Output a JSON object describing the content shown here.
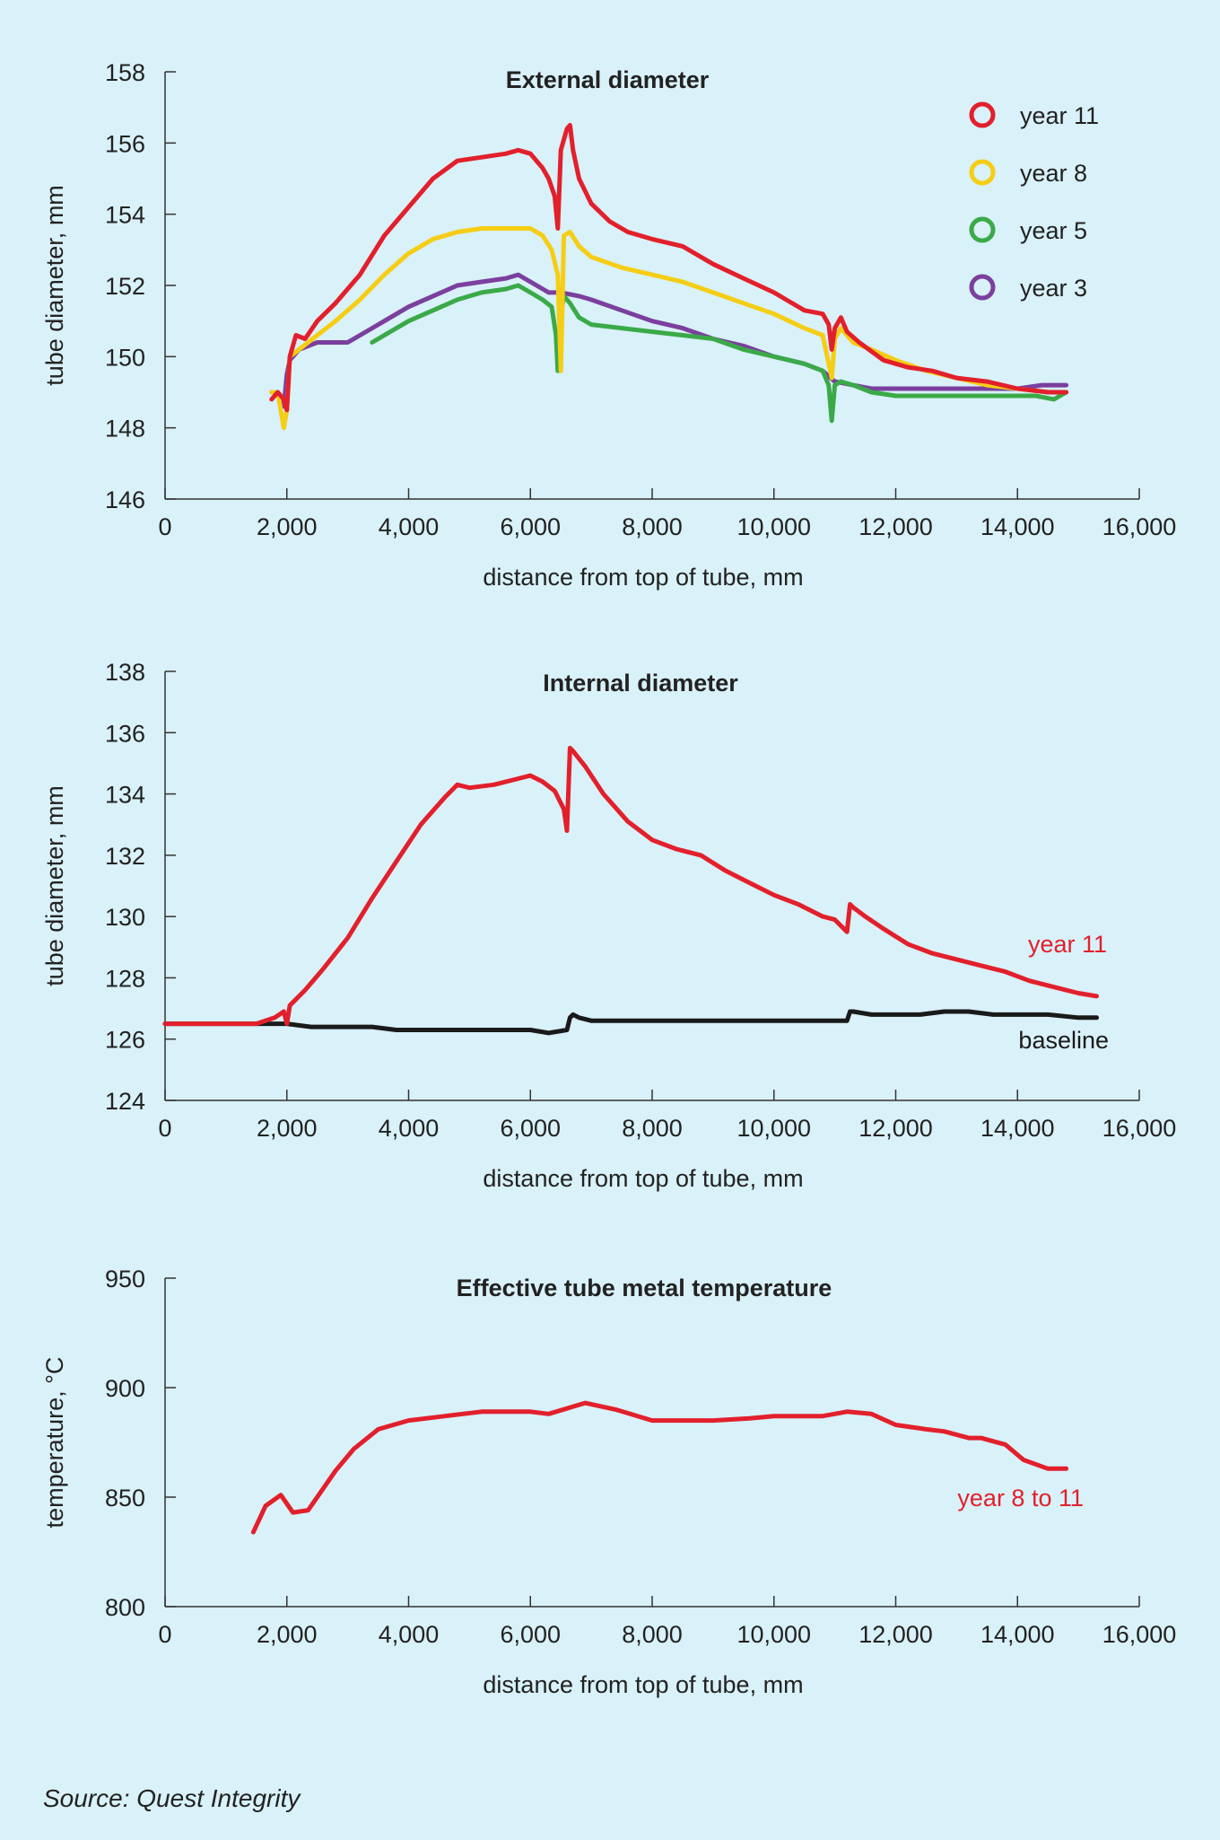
{
  "chart_data": [
    {
      "type": "line",
      "title": "External diameter",
      "xlabel": "distance from top of tube, mm",
      "ylabel": "tube diameter, mm",
      "xlim": [
        0,
        16000
      ],
      "ylim": [
        146,
        158
      ],
      "xticks": [
        0,
        2000,
        4000,
        6000,
        8000,
        10000,
        12000,
        14000,
        16000
      ],
      "xtick_labels": [
        "0",
        "2,000",
        "4,000",
        "6,000",
        "8,000",
        "10,000",
        "12,000",
        "14,000",
        "16,000"
      ],
      "yticks": [
        146,
        148,
        150,
        152,
        154,
        156,
        158
      ],
      "ytick_labels": [
        "146",
        "148",
        "150",
        "152",
        "154",
        "156",
        "158"
      ],
      "legend": "top-right",
      "series": [
        {
          "name": "year 11",
          "color": "#e2202c",
          "x": [
            1750,
            1850,
            1950,
            2000,
            2050,
            2150,
            2300,
            2500,
            2800,
            3200,
            3600,
            4000,
            4400,
            4800,
            5200,
            5600,
            5800,
            6000,
            6200,
            6300,
            6400,
            6450,
            6500,
            6600,
            6650,
            6700,
            6800,
            7000,
            7300,
            7600,
            8000,
            8500,
            9000,
            9500,
            10000,
            10500,
            10800,
            10900,
            10950,
            11000,
            11100,
            11200,
            11400,
            11800,
            12200,
            12600,
            13000,
            13500,
            14000,
            14500,
            14800
          ],
          "y": [
            148.8,
            149.0,
            148.8,
            148.5,
            150.0,
            150.6,
            150.5,
            151.0,
            151.5,
            152.3,
            153.4,
            154.2,
            155.0,
            155.5,
            155.6,
            155.7,
            155.8,
            155.7,
            155.3,
            155.0,
            154.5,
            153.6,
            155.8,
            156.4,
            156.5,
            155.8,
            155.0,
            154.3,
            153.8,
            153.5,
            153.3,
            153.1,
            152.6,
            152.2,
            151.8,
            151.3,
            151.2,
            150.9,
            150.2,
            150.8,
            151.1,
            150.7,
            150.4,
            149.9,
            149.7,
            149.6,
            149.4,
            149.3,
            149.1,
            149.0,
            149.0
          ]
        },
        {
          "name": "year 8",
          "color": "#f5cd14",
          "x": [
            1750,
            1850,
            1950,
            2000,
            2050,
            2200,
            2500,
            2800,
            3200,
            3600,
            4000,
            4400,
            4800,
            5200,
            5600,
            6000,
            6200,
            6350,
            6450,
            6500,
            6550,
            6650,
            6800,
            7000,
            7500,
            8000,
            8500,
            9000,
            9500,
            10000,
            10500,
            10800,
            10950,
            11000,
            11100,
            11300,
            11600,
            12000,
            12500,
            13000,
            13500,
            14000,
            14500,
            14800
          ],
          "y": [
            149.0,
            149.0,
            148.0,
            148.5,
            150.0,
            150.2,
            150.6,
            151.0,
            151.6,
            152.3,
            152.9,
            153.3,
            153.5,
            153.6,
            153.6,
            153.6,
            153.4,
            153.0,
            152.3,
            149.6,
            153.4,
            153.5,
            153.1,
            152.8,
            152.5,
            152.3,
            152.1,
            151.8,
            151.5,
            151.2,
            150.8,
            150.6,
            149.4,
            150.5,
            150.8,
            150.4,
            150.2,
            149.9,
            149.6,
            149.4,
            149.2,
            149.1,
            149.0,
            149.0
          ]
        },
        {
          "name": "year 5",
          "color": "#3aaa48",
          "x": [
            3400,
            3600,
            4000,
            4400,
            4800,
            5200,
            5600,
            5800,
            6000,
            6200,
            6350,
            6420,
            6450,
            6500,
            6550,
            6650,
            6800,
            7000,
            7500,
            8000,
            8500,
            9000,
            9500,
            10000,
            10500,
            10800,
            10900,
            10950,
            11000,
            11100,
            11300,
            11600,
            12000,
            12500,
            13000,
            13500,
            14000,
            14300,
            14600,
            14800
          ],
          "y": [
            150.4,
            150.6,
            151.0,
            151.3,
            151.6,
            151.8,
            151.9,
            152.0,
            151.8,
            151.6,
            151.4,
            150.6,
            149.6,
            151.2,
            151.7,
            151.5,
            151.1,
            150.9,
            150.8,
            150.7,
            150.6,
            150.5,
            150.2,
            150.0,
            149.8,
            149.6,
            149.2,
            148.2,
            149.2,
            149.3,
            149.2,
            149.0,
            148.9,
            148.9,
            148.9,
            148.9,
            148.9,
            148.9,
            148.8,
            149.0
          ]
        },
        {
          "name": "year 3",
          "color": "#7b3f9e",
          "x": [
            1750,
            1850,
            1950,
            2000,
            2050,
            2200,
            2500,
            2800,
            3000,
            3300,
            3600,
            4000,
            4400,
            4800,
            5200,
            5600,
            5800,
            6000,
            6300,
            6500,
            6800,
            7000,
            7500,
            8000,
            8500,
            9000,
            9500,
            10000,
            10500,
            10800,
            11000,
            11300,
            11600,
            12000,
            12500,
            13000,
            13500,
            14000,
            14400,
            14800
          ],
          "y": [
            149.0,
            149.0,
            148.6,
            149.5,
            149.9,
            150.2,
            150.4,
            150.4,
            150.4,
            150.7,
            151.0,
            151.4,
            151.7,
            152.0,
            152.1,
            152.2,
            152.3,
            152.1,
            151.8,
            151.8,
            151.7,
            151.6,
            151.3,
            151.0,
            150.8,
            150.5,
            150.3,
            150.0,
            149.8,
            149.6,
            149.3,
            149.2,
            149.1,
            149.1,
            149.1,
            149.1,
            149.1,
            149.1,
            149.2,
            149.2
          ]
        }
      ]
    },
    {
      "type": "line",
      "title": "Internal diameter",
      "xlabel": "distance from top of tube, mm",
      "ylabel": "tube diameter, mm",
      "xlim": [
        0,
        16000
      ],
      "ylim": [
        124,
        138
      ],
      "xticks": [
        0,
        2000,
        4000,
        6000,
        8000,
        10000,
        12000,
        14000,
        16000
      ],
      "xtick_labels": [
        "0",
        "2,000",
        "4,000",
        "6,000",
        "8,000",
        "10,000",
        "12,000",
        "14,000",
        "16,000"
      ],
      "yticks": [
        124,
        126,
        128,
        130,
        132,
        134,
        136,
        138
      ],
      "ytick_labels": [
        "124",
        "126",
        "128",
        "130",
        "132",
        "134",
        "136",
        "138"
      ],
      "series": [
        {
          "name": "year 11",
          "color": "#e2202c",
          "x": [
            0,
            500,
            1000,
            1500,
            1800,
            1950,
            2000,
            2050,
            2300,
            2600,
            3000,
            3400,
            3800,
            4200,
            4600,
            4800,
            5000,
            5400,
            5800,
            6000,
            6200,
            6400,
            6550,
            6600,
            6650,
            6700,
            6900,
            7200,
            7600,
            8000,
            8400,
            8800,
            9200,
            9600,
            10000,
            10400,
            10800,
            11000,
            11200,
            11250,
            11300,
            11500,
            11800,
            12200,
            12600,
            13000,
            13400,
            13800,
            14200,
            14600,
            15000,
            15300
          ],
          "y": [
            126.5,
            126.5,
            126.5,
            126.5,
            126.7,
            126.9,
            126.5,
            127.1,
            127.6,
            128.3,
            129.3,
            130.6,
            131.8,
            133.0,
            133.9,
            134.3,
            134.2,
            134.3,
            134.5,
            134.6,
            134.4,
            134.1,
            133.5,
            132.8,
            135.5,
            135.4,
            134.9,
            134.0,
            133.1,
            132.5,
            132.2,
            132.0,
            131.5,
            131.1,
            130.7,
            130.4,
            130.0,
            129.9,
            129.5,
            130.4,
            130.3,
            130.0,
            129.6,
            129.1,
            128.8,
            128.6,
            128.4,
            128.2,
            127.9,
            127.7,
            127.5,
            127.4
          ]
        },
        {
          "name": "baseline",
          "color": "#1a1a1a",
          "x": [
            0,
            500,
            1000,
            1500,
            2000,
            2400,
            2800,
            3400,
            3800,
            4400,
            5000,
            5600,
            6000,
            6300,
            6600,
            6650,
            6700,
            6800,
            7000,
            7500,
            8000,
            9000,
            10000,
            11000,
            11200,
            11250,
            11300,
            11600,
            12000,
            12400,
            12800,
            13200,
            13600,
            14000,
            14200,
            14500,
            15000,
            15300
          ],
          "y": [
            126.5,
            126.5,
            126.5,
            126.5,
            126.5,
            126.4,
            126.4,
            126.4,
            126.3,
            126.3,
            126.3,
            126.3,
            126.3,
            126.2,
            126.3,
            126.7,
            126.8,
            126.7,
            126.6,
            126.6,
            126.6,
            126.6,
            126.6,
            126.6,
            126.6,
            126.9,
            126.9,
            126.8,
            126.8,
            126.8,
            126.9,
            126.9,
            126.8,
            126.8,
            126.8,
            126.8,
            126.7,
            126.7
          ]
        }
      ]
    },
    {
      "type": "line",
      "title": "Effective tube metal temperature",
      "xlabel": "distance from top of tube, mm",
      "ylabel": "temperature, °C",
      "xlim": [
        0,
        16000
      ],
      "ylim": [
        800,
        950
      ],
      "xticks": [
        0,
        2000,
        4000,
        6000,
        8000,
        10000,
        12000,
        14000,
        16000
      ],
      "xtick_labels": [
        "0",
        "2,000",
        "4,000",
        "6,000",
        "8,000",
        "10,000",
        "12,000",
        "14,000",
        "16,000"
      ],
      "yticks": [
        800,
        850,
        900,
        950
      ],
      "ytick_labels": [
        "800",
        "850",
        "900",
        "950"
      ],
      "series": [
        {
          "name": "year 8 to 11",
          "color": "#e2202c",
          "x": [
            1450,
            1650,
            1900,
            2100,
            2350,
            2800,
            3100,
            3500,
            4000,
            4600,
            5200,
            6000,
            6300,
            6900,
            7400,
            8000,
            8400,
            9000,
            9600,
            10000,
            10800,
            11200,
            11600,
            12000,
            12500,
            12800,
            13200,
            13400,
            13800,
            14100,
            14500,
            14800
          ],
          "y": [
            834,
            846,
            851,
            843,
            844,
            862,
            872,
            881,
            885,
            887,
            889,
            889,
            888,
            893,
            890,
            885,
            885,
            885,
            886,
            887,
            887,
            889,
            888,
            883,
            881,
            880,
            877,
            877,
            874,
            867,
            863,
            863
          ]
        }
      ]
    }
  ],
  "source": "Source: Quest Integrity"
}
